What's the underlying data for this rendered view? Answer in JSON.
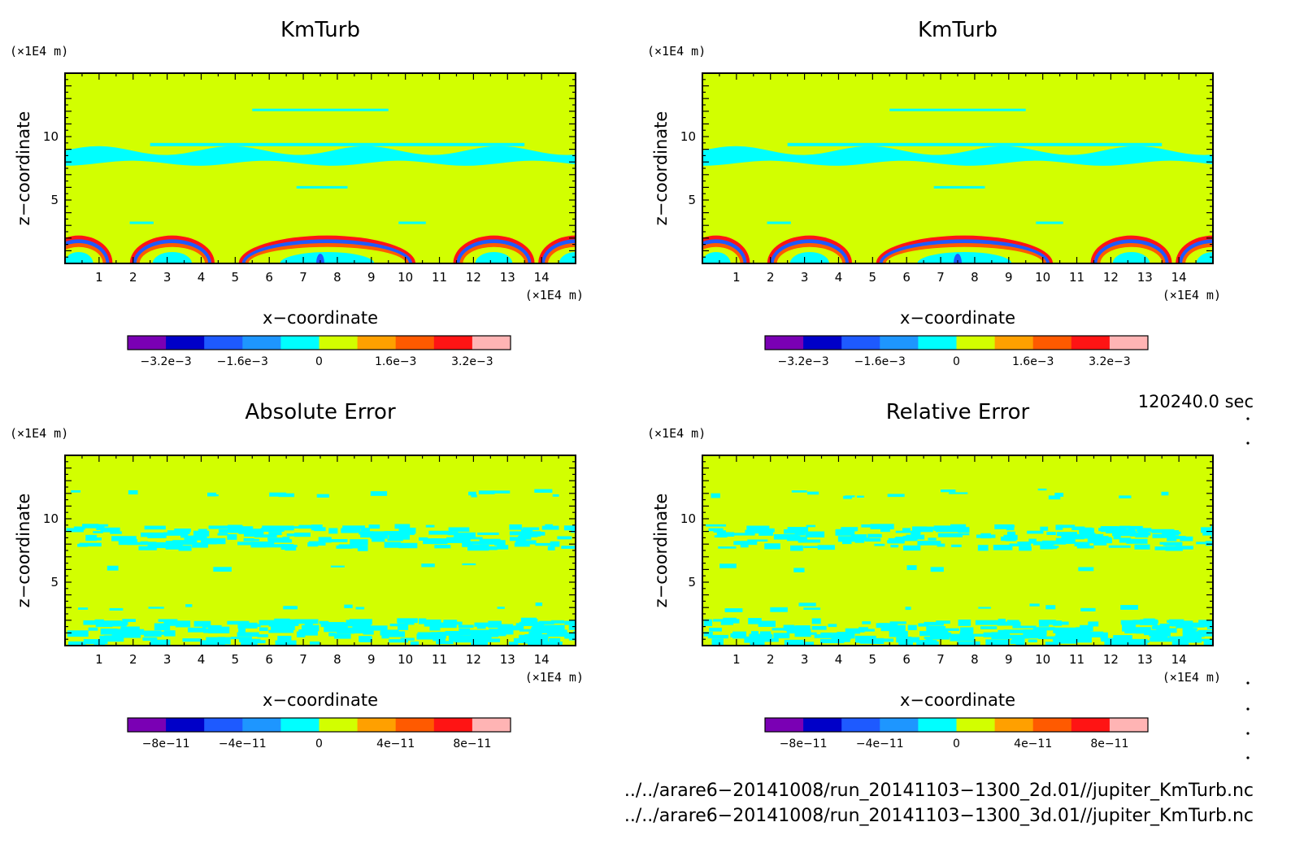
{
  "chart_data": [
    {
      "type": "heatmap",
      "title": "KmTurb",
      "xlabel": "x−coordinate",
      "ylabel": "z−coordinate",
      "x_unit": "(×1E4 m)",
      "y_unit": "(×1E4 m)",
      "xlim": [
        0,
        15
      ],
      "ylim": [
        0,
        15
      ],
      "x_ticks": [
        "1",
        "2",
        "3",
        "4",
        "5",
        "6",
        "7",
        "8",
        "9",
        "10",
        "11",
        "12",
        "13",
        "14"
      ],
      "y_ticks": [
        "5",
        "10"
      ],
      "colorbar_labels": [
        "−3.2e−3",
        "−1.6e−3",
        "0",
        "1.6e−3",
        "3.2e−3"
      ],
      "pattern": "field"
    },
    {
      "type": "heatmap",
      "title": "KmTurb",
      "xlabel": "x−coordinate",
      "ylabel": "z−coordinate",
      "x_unit": "(×1E4 m)",
      "y_unit": "(×1E4 m)",
      "xlim": [
        0,
        15
      ],
      "ylim": [
        0,
        15
      ],
      "x_ticks": [
        "1",
        "2",
        "3",
        "4",
        "5",
        "6",
        "7",
        "8",
        "9",
        "10",
        "11",
        "12",
        "13",
        "14"
      ],
      "y_ticks": [
        "5",
        "10"
      ],
      "colorbar_labels": [
        "−3.2e−3",
        "−1.6e−3",
        "0",
        "1.6e−3",
        "3.2e−3"
      ],
      "pattern": "field"
    },
    {
      "type": "heatmap",
      "title": "Absolute Error",
      "xlabel": "x−coordinate",
      "ylabel": "z−coordinate",
      "x_unit": "(×1E4 m)",
      "y_unit": "(×1E4 m)",
      "xlim": [
        0,
        15
      ],
      "ylim": [
        0,
        15
      ],
      "x_ticks": [
        "1",
        "2",
        "3",
        "4",
        "5",
        "6",
        "7",
        "8",
        "9",
        "10",
        "11",
        "12",
        "13",
        "14"
      ],
      "y_ticks": [
        "5",
        "10"
      ],
      "colorbar_labels": [
        "−8e−11",
        "−4e−11",
        "0",
        "4e−11",
        "8e−11"
      ],
      "pattern": "error"
    },
    {
      "type": "heatmap",
      "title": "Relative Error",
      "xlabel": "x−coordinate",
      "ylabel": "z−coordinate",
      "x_unit": "(×1E4 m)",
      "y_unit": "(×1E4 m)",
      "xlim": [
        0,
        15
      ],
      "ylim": [
        0,
        15
      ],
      "x_ticks": [
        "1",
        "2",
        "3",
        "4",
        "5",
        "6",
        "7",
        "8",
        "9",
        "10",
        "11",
        "12",
        "13",
        "14"
      ],
      "y_ticks": [
        "5",
        "10"
      ],
      "colorbar_labels": [
        "−8e−11",
        "−4e−11",
        "0",
        "4e−11",
        "8e−11"
      ],
      "pattern": "error"
    }
  ],
  "colormap": [
    "#7a00b4",
    "#0000c8",
    "#1e5aff",
    "#1e96ff",
    "#00ffff",
    "#d2ff00",
    "#ffa000",
    "#ff5a00",
    "#ff1414",
    "#ffb4b4"
  ],
  "timestamp": "120240.0 sec",
  "footer": {
    "line1": "../../arare6−20141008/run_20141103−1300_2d.01//jupiter_KmTurb.nc",
    "line2": "../../arare6−20141008/run_20141103−1300_3d.01//jupiter_KmTurb.nc"
  }
}
